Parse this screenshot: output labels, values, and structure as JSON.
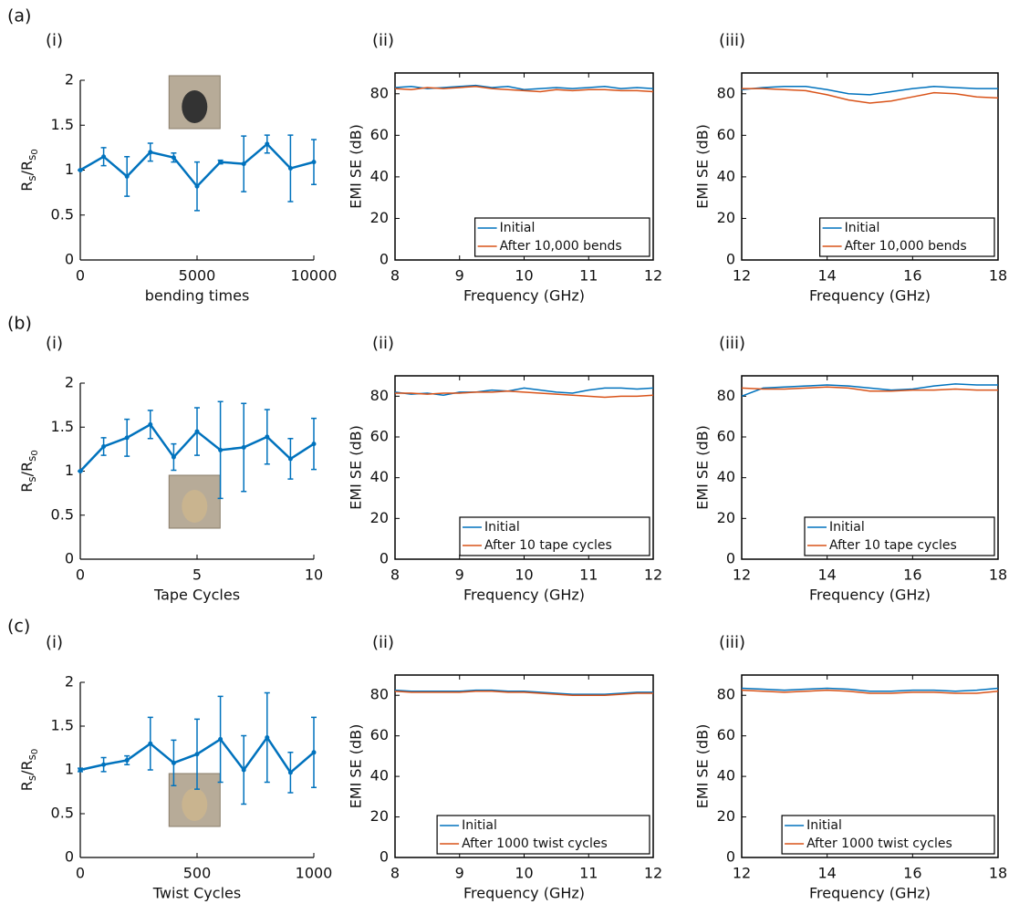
{
  "row_labels": [
    "(a)",
    "(b)",
    "(c)"
  ],
  "chart_data": [
    {
      "type": "errorbar",
      "panel": "(i)",
      "xlabel": "bending times",
      "ylabel_parts": [
        "R",
        "s",
        "/R",
        "s",
        "0"
      ],
      "color": "#0072bd",
      "x": [
        0,
        1000,
        2000,
        3000,
        4000,
        5000,
        6000,
        7000,
        8000,
        9000,
        10000
      ],
      "values": [
        1,
        1.15,
        0.93,
        1.2,
        1.14,
        0.82,
        1.09,
        1.07,
        1.29,
        1.02,
        1.09
      ],
      "errors": [
        0,
        0.1,
        0.22,
        0.1,
        0.05,
        0.27,
        0.02,
        0.31,
        0.1,
        0.37,
        0.25
      ],
      "xlim": [
        0,
        10000
      ],
      "xticks": [
        0,
        5000,
        10000
      ],
      "ylim": [
        0,
        2
      ],
      "yticks": [
        0,
        0.5,
        1,
        1.5,
        2
      ]
    },
    {
      "type": "line",
      "panel": "(ii)",
      "xlabel": "Frequency (GHz)",
      "ylabel": "EMI SE (dB)",
      "x": [
        8,
        8.25,
        8.5,
        8.75,
        9,
        9.25,
        9.5,
        9.75,
        10,
        10.25,
        10.5,
        10.75,
        11,
        11.25,
        11.5,
        11.75,
        12
      ],
      "series": [
        {
          "name": "Initial",
          "color": "#0072bd",
          "values": [
            83,
            83.5,
            82.5,
            83,
            83.5,
            84,
            83,
            83.5,
            82,
            82.5,
            83,
            82.5,
            83,
            83.5,
            82.5,
            83,
            82.5
          ]
        },
        {
          "name": "After 10,000 bends",
          "color": "#d95319",
          "values": [
            82.5,
            82,
            83,
            82.5,
            83,
            83.5,
            82.5,
            82,
            81.5,
            81,
            82,
            81.5,
            82,
            82,
            81.5,
            81.5,
            81
          ]
        }
      ],
      "xlim": [
        8,
        12
      ],
      "xticks": [
        8,
        9,
        10,
        11,
        12
      ],
      "ylim": [
        0,
        90
      ],
      "yticks": [
        0,
        20,
        40,
        60,
        80
      ],
      "legend": "lower right"
    },
    {
      "type": "line",
      "panel": "(iii)",
      "xlabel": "Frequency (GHz)",
      "ylabel": "EMI SE (dB)",
      "x": [
        12,
        12.5,
        13,
        13.5,
        14,
        14.5,
        15,
        15.5,
        16,
        16.5,
        17,
        17.5,
        18
      ],
      "series": [
        {
          "name": "Initial",
          "color": "#0072bd",
          "values": [
            82,
            83,
            83.5,
            83.5,
            82,
            80,
            79.5,
            81,
            82.5,
            83.5,
            83,
            82.5,
            82.5
          ]
        },
        {
          "name": "After 10,000 bends",
          "color": "#d95319",
          "values": [
            82.5,
            82.5,
            82,
            81.5,
            79.5,
            77,
            75.5,
            76.5,
            78.5,
            80.5,
            80,
            78.5,
            78
          ]
        }
      ],
      "xlim": [
        12,
        18
      ],
      "xticks": [
        12,
        14,
        16,
        18
      ],
      "ylim": [
        0,
        90
      ],
      "yticks": [
        0,
        20,
        40,
        60,
        80
      ],
      "legend": "lower right"
    },
    {
      "type": "errorbar",
      "panel": "(i)",
      "xlabel": "Tape Cycles",
      "ylabel_parts": [
        "R",
        "s",
        "/R",
        "s",
        "0"
      ],
      "color": "#0072bd",
      "x": [
        0,
        1,
        2,
        3,
        4,
        5,
        6,
        7,
        8,
        9,
        10
      ],
      "values": [
        1,
        1.28,
        1.38,
        1.53,
        1.16,
        1.45,
        1.24,
        1.27,
        1.39,
        1.14,
        1.31
      ],
      "errors": [
        0,
        0.1,
        0.21,
        0.16,
        0.15,
        0.27,
        0.55,
        0.5,
        0.31,
        0.23,
        0.29
      ],
      "xlim": [
        0,
        10
      ],
      "xticks": [
        0,
        5,
        10
      ],
      "ylim": [
        0,
        2
      ],
      "yticks": [
        0,
        0.5,
        1,
        1.5,
        2
      ]
    },
    {
      "type": "line",
      "panel": "(ii)",
      "xlabel": "Frequency (GHz)",
      "ylabel": "EMI SE (dB)",
      "x": [
        8,
        8.25,
        8.5,
        8.75,
        9,
        9.25,
        9.5,
        9.75,
        10,
        10.25,
        10.5,
        10.75,
        11,
        11.25,
        11.5,
        11.75,
        12
      ],
      "series": [
        {
          "name": "Initial",
          "color": "#0072bd",
          "values": [
            82,
            81,
            81.5,
            80.5,
            82,
            82,
            83,
            82.5,
            84,
            83,
            82,
            81.5,
            83,
            84,
            84,
            83.5,
            84
          ]
        },
        {
          "name": "After 10 tape cycles",
          "color": "#d95319",
          "values": [
            81.5,
            81.5,
            81,
            81.5,
            81.5,
            82,
            82,
            82.5,
            82,
            81.5,
            81,
            80.5,
            80,
            79.5,
            80,
            80,
            80.5
          ]
        }
      ],
      "xlim": [
        8,
        12
      ],
      "xticks": [
        8,
        9,
        10,
        11,
        12
      ],
      "ylim": [
        0,
        90
      ],
      "yticks": [
        0,
        20,
        40,
        60,
        80
      ],
      "legend": "lower right"
    },
    {
      "type": "line",
      "panel": "(iii)",
      "xlabel": "Frequency (GHz)",
      "ylabel": "EMI SE (dB)",
      "x": [
        12,
        12.5,
        13,
        13.5,
        14,
        14.5,
        15,
        15.5,
        16,
        16.5,
        17,
        17.5,
        18
      ],
      "series": [
        {
          "name": "Initial",
          "color": "#0072bd",
          "values": [
            80,
            84,
            84.5,
            85,
            85.5,
            85,
            84,
            83,
            83.5,
            85,
            86,
            85.5,
            85.5
          ]
        },
        {
          "name": "After 10 tape cycles",
          "color": "#d95319",
          "values": [
            84,
            83.5,
            83.5,
            84,
            84.5,
            84,
            82.5,
            82.5,
            83,
            83,
            83.5,
            83,
            83
          ]
        }
      ],
      "xlim": [
        12,
        18
      ],
      "xticks": [
        12,
        14,
        16,
        18
      ],
      "ylim": [
        0,
        90
      ],
      "yticks": [
        0,
        20,
        40,
        60,
        80
      ],
      "legend": "lower right"
    },
    {
      "type": "errorbar",
      "panel": "(i)",
      "xlabel": "Twist Cycles",
      "ylabel_parts": [
        "R",
        "s",
        "/R",
        "s",
        "0"
      ],
      "color": "#0072bd",
      "x": [
        0,
        100,
        200,
        300,
        400,
        500,
        600,
        700,
        800,
        900,
        1000
      ],
      "values": [
        1,
        1.06,
        1.11,
        1.3,
        1.08,
        1.18,
        1.35,
        1.0,
        1.37,
        0.97,
        1.2
      ],
      "errors": [
        0.02,
        0.08,
        0.05,
        0.3,
        0.26,
        0.4,
        0.49,
        0.39,
        0.51,
        0.23,
        0.4
      ],
      "xlim": [
        0,
        1000
      ],
      "xticks": [
        0,
        500,
        1000
      ],
      "ylim": [
        0,
        2
      ],
      "yticks": [
        0,
        0.5,
        1,
        1.5,
        2
      ]
    },
    {
      "type": "line",
      "panel": "(ii)",
      "xlabel": "Frequency (GHz)",
      "ylabel": "EMI SE (dB)",
      "x": [
        8,
        8.25,
        8.5,
        8.75,
        9,
        9.25,
        9.5,
        9.75,
        10,
        10.25,
        10.5,
        10.75,
        11,
        11.25,
        11.5,
        11.75,
        12
      ],
      "series": [
        {
          "name": "Initial",
          "color": "#0072bd",
          "values": [
            82.5,
            82,
            82,
            82,
            82,
            82.5,
            82.5,
            82,
            82,
            81.5,
            81,
            80.5,
            80.5,
            80.5,
            81,
            81.5,
            81.5
          ]
        },
        {
          "name": "After 1000 twist cycles",
          "color": "#d95319",
          "values": [
            82,
            81.5,
            81.5,
            81.5,
            81.5,
            82,
            82,
            81.5,
            81.5,
            81,
            80.5,
            80,
            80,
            80,
            80.5,
            81,
            81
          ]
        }
      ],
      "xlim": [
        8,
        12
      ],
      "xticks": [
        8,
        9,
        10,
        11,
        12
      ],
      "ylim": [
        0,
        90
      ],
      "yticks": [
        0,
        20,
        40,
        60,
        80
      ],
      "legend": "lower right"
    },
    {
      "type": "line",
      "panel": "(iii)",
      "xlabel": "Frequency (GHz)",
      "ylabel": "EMI SE (dB)",
      "x": [
        12,
        12.5,
        13,
        13.5,
        14,
        14.5,
        15,
        15.5,
        16,
        16.5,
        17,
        17.5,
        18
      ],
      "series": [
        {
          "name": "Initial",
          "color": "#0072bd",
          "values": [
            83.5,
            83,
            82.5,
            83,
            83.5,
            83,
            82,
            82,
            82.5,
            82.5,
            82,
            82.5,
            83.5
          ]
        },
        {
          "name": "After 1000 twist cycles",
          "color": "#d95319",
          "values": [
            82.5,
            82,
            81.5,
            82,
            82.5,
            82,
            81,
            81,
            81.5,
            81.5,
            81,
            81,
            82
          ]
        }
      ],
      "xlim": [
        12,
        18
      ],
      "xticks": [
        12,
        14,
        16,
        18
      ],
      "ylim": [
        0,
        90
      ],
      "yticks": [
        0,
        20,
        40,
        60,
        80
      ],
      "legend": "lower right"
    }
  ]
}
